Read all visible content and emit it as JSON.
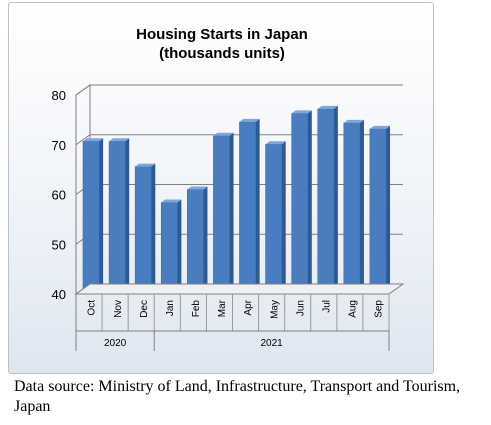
{
  "chart_data": {
    "type": "bar",
    "title": "Housing Starts in Japan",
    "subtitle": "(thousands units)",
    "xlabel": "",
    "ylabel": "",
    "categories": [
      "Oct",
      "Nov",
      "Dec",
      "Jan",
      "Feb",
      "Mar",
      "Apr",
      "May",
      "Jun",
      "Jul",
      "Aug",
      "Sep"
    ],
    "values": [
      70.7,
      70.7,
      65.6,
      58.4,
      61.0,
      71.8,
      74.6,
      70.1,
      76.3,
      77.2,
      74.4,
      73.2
    ],
    "groups": [
      {
        "label": "2020",
        "span": 3
      },
      {
        "label": "2021",
        "span": 9
      }
    ],
    "ylim": [
      40,
      80
    ],
    "yticks": [
      40,
      50,
      60,
      70,
      80
    ],
    "grid": true,
    "legend": "none",
    "bar_color": "#4a7cc0",
    "bar_top_color": "#7fa6d9",
    "bar_side_color": "#2e5a94"
  },
  "source_note": "Data source: Ministry of Land, Infrastructure, Transport and Tourism, Japan"
}
